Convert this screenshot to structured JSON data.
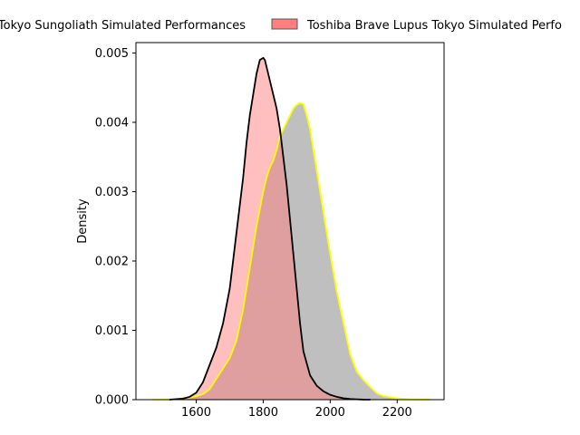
{
  "chart_data": {
    "type": "area",
    "xlabel": "",
    "ylabel": "Density",
    "xlim": [
      1420,
      2340
    ],
    "ylim": [
      0,
      0.00515
    ],
    "grid": false,
    "legend_position": "top, outside plot",
    "xticks": [
      1600,
      1800,
      2000,
      2200
    ],
    "xtick_labels": [
      "1600",
      "1800",
      "2000",
      "2200"
    ],
    "yticks": [
      0.0,
      0.001,
      0.002,
      0.003,
      0.004,
      0.005
    ],
    "ytick_labels": [
      "0.000",
      "0.001",
      "0.002",
      "0.003",
      "0.004",
      "0.005"
    ],
    "series": [
      {
        "name": "Tokyo Sungoliath Simulated Performances",
        "legend_label": "Tokyo Sungoliath Simulated Performances",
        "fill_color": "#808080",
        "fill_opacity": 0.5,
        "line_color": "#ffff00",
        "x": [
          1470,
          1500,
          1540,
          1580,
          1600,
          1620,
          1640,
          1660,
          1680,
          1700,
          1720,
          1740,
          1760,
          1780,
          1800,
          1810,
          1820,
          1830,
          1840,
          1850,
          1860,
          1870,
          1880,
          1890,
          1900,
          1910,
          1920,
          1930,
          1940,
          1950,
          1960,
          1970,
          1980,
          1990,
          2000,
          2020,
          2040,
          2060,
          2080,
          2100,
          2120,
          2140,
          2160,
          2200,
          2240,
          2300
        ],
        "y": [
          0.0,
          2e-06,
          1e-05,
          3e-05,
          5e-05,
          8e-05,
          0.00015,
          0.0003,
          0.00045,
          0.0006,
          0.00085,
          0.0013,
          0.0019,
          0.0025,
          0.003,
          0.0032,
          0.00335,
          0.00345,
          0.0036,
          0.0038,
          0.0039,
          0.004,
          0.0041,
          0.0042,
          0.00425,
          0.00428,
          0.00426,
          0.0041,
          0.0039,
          0.0036,
          0.0033,
          0.003,
          0.0027,
          0.0024,
          0.0021,
          0.00155,
          0.0011,
          0.00065,
          0.0004,
          0.00028,
          0.00018,
          9e-05,
          5e-05,
          2e-05,
          5e-06,
          0.0
        ]
      },
      {
        "name": "Toshiba Brave Lupus Tokyo Simulated Performances",
        "legend_label": "Toshiba Brave Lupus Tokyo Simulated Perfo",
        "fill_color": "#ff7f7f",
        "fill_opacity": 0.5,
        "line_color": "#000000",
        "x": [
          1520,
          1560,
          1580,
          1600,
          1620,
          1640,
          1660,
          1680,
          1700,
          1720,
          1740,
          1750,
          1760,
          1770,
          1780,
          1790,
          1800,
          1805,
          1810,
          1820,
          1830,
          1840,
          1850,
          1860,
          1870,
          1880,
          1890,
          1900,
          1910,
          1920,
          1940,
          1960,
          1980,
          2000,
          2020,
          2040,
          2060,
          2080,
          2100,
          2120
        ],
        "y": [
          0.0,
          1.5e-05,
          4e-05,
          0.0001,
          0.00025,
          0.0005,
          0.00075,
          0.0011,
          0.0016,
          0.0024,
          0.0032,
          0.0037,
          0.0041,
          0.0044,
          0.0047,
          0.0049,
          0.00493,
          0.0049,
          0.0048,
          0.0046,
          0.0044,
          0.0042,
          0.0039,
          0.0035,
          0.0031,
          0.0026,
          0.0021,
          0.0016,
          0.0011,
          0.0007,
          0.00035,
          0.0002,
          0.00012,
          7e-05,
          4e-05,
          2e-05,
          1e-05,
          5e-06,
          1e-06,
          0.0
        ]
      }
    ]
  }
}
